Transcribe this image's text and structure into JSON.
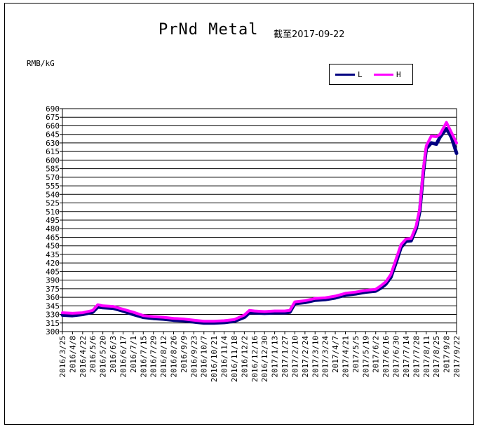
{
  "title": "PrNd Metal",
  "subtitle": "截至2017-09-22",
  "unit": "RMB/kG",
  "colors": {
    "L": "#000080",
    "H": "#ff00ff",
    "grid": "#000000",
    "background": "#ffffff"
  },
  "chart_data": {
    "type": "line",
    "title": "PrNd Metal",
    "ylabel": "RMB/kG",
    "ylim": [
      300,
      690
    ],
    "ystep": 15,
    "grid": true,
    "legend_position": "top-right",
    "yticks": [
      "300",
      "315",
      "330",
      "345",
      "360",
      "375",
      "390",
      "405",
      "420",
      "435",
      "450",
      "465",
      "480",
      "495",
      "510",
      "525",
      "540",
      "555",
      "570",
      "585",
      "600",
      "615",
      "630",
      "645",
      "660",
      "675",
      "690"
    ],
    "xticks": [
      "2016/3/25",
      "2016/4/8",
      "2016/4/22",
      "2016/5/6",
      "2016/5/20",
      "2016/6/3",
      "2016/6/17",
      "2016/7/1",
      "2016/7/15",
      "2016/7/29",
      "2016/8/12",
      "2016/8/26",
      "2016/9/9",
      "2016/9/23",
      "2016/10/7",
      "2016/10/21",
      "2016/11/4",
      "2016/11/18",
      "2016/12/2",
      "2016/12/16",
      "2016/12/30",
      "2017/1/13",
      "2017/1/27",
      "2017/2/10",
      "2017/2/24",
      "2017/3/10",
      "2017/3/24",
      "2017/4/7",
      "2017/4/21",
      "2017/5/5",
      "2017/5/19",
      "2017/6/2",
      "2017/6/16",
      "2017/6/30",
      "2017/7/14",
      "2017/7/28",
      "2017/8/11",
      "2017/8/25",
      "2017/9/8",
      "2017/9/22"
    ],
    "series": [
      {
        "name": "L",
        "points": [
          [
            "2016/3/25",
            329
          ],
          [
            "2016/4/8",
            328
          ],
          [
            "2016/4/22",
            330
          ],
          [
            "2016/5/6",
            334
          ],
          [
            "2016/5/13",
            343
          ],
          [
            "2016/5/20",
            342
          ],
          [
            "2016/6/3",
            341
          ],
          [
            "2016/6/17",
            336
          ],
          [
            "2016/7/1",
            330
          ],
          [
            "2016/7/15",
            325
          ],
          [
            "2016/7/29",
            323
          ],
          [
            "2016/8/12",
            322
          ],
          [
            "2016/8/26",
            320
          ],
          [
            "2016/9/9",
            319
          ],
          [
            "2016/9/23",
            317
          ],
          [
            "2016/10/7",
            315
          ],
          [
            "2016/10/21",
            315
          ],
          [
            "2016/11/4",
            316
          ],
          [
            "2016/11/18",
            318
          ],
          [
            "2016/12/2",
            325
          ],
          [
            "2016/12/9",
            333
          ],
          [
            "2016/12/16",
            333
          ],
          [
            "2016/12/30",
            332
          ],
          [
            "2017/1/13",
            333
          ],
          [
            "2017/1/27",
            333
          ],
          [
            "2017/2/3",
            334
          ],
          [
            "2017/2/10",
            349
          ],
          [
            "2017/2/24",
            351
          ],
          [
            "2017/3/10",
            355
          ],
          [
            "2017/3/24",
            356
          ],
          [
            "2017/4/7",
            359
          ],
          [
            "2017/4/21",
            364
          ],
          [
            "2017/5/5",
            366
          ],
          [
            "2017/5/19",
            369
          ],
          [
            "2017/6/2",
            371
          ],
          [
            "2017/6/9",
            376
          ],
          [
            "2017/6/16",
            383
          ],
          [
            "2017/6/23",
            395
          ],
          [
            "2017/6/30",
            420
          ],
          [
            "2017/7/7",
            447
          ],
          [
            "2017/7/14",
            458
          ],
          [
            "2017/7/21",
            459
          ],
          [
            "2017/7/28",
            480
          ],
          [
            "2017/8/2",
            510
          ],
          [
            "2017/8/7",
            580
          ],
          [
            "2017/8/11",
            620
          ],
          [
            "2017/8/18",
            630
          ],
          [
            "2017/8/25",
            628
          ],
          [
            "2017/8/30",
            640
          ],
          [
            "2017/9/8",
            655
          ],
          [
            "2017/9/15",
            640
          ],
          [
            "2017/9/22",
            612
          ]
        ]
      },
      {
        "name": "H",
        "points": [
          [
            "2016/3/25",
            333
          ],
          [
            "2016/4/8",
            332
          ],
          [
            "2016/4/22",
            333
          ],
          [
            "2016/5/6",
            337
          ],
          [
            "2016/5/13",
            347
          ],
          [
            "2016/5/20",
            345
          ],
          [
            "2016/6/3",
            344
          ],
          [
            "2016/6/17",
            339
          ],
          [
            "2016/7/1",
            334
          ],
          [
            "2016/7/15",
            328
          ],
          [
            "2016/7/29",
            326
          ],
          [
            "2016/8/12",
            325
          ],
          [
            "2016/8/26",
            323
          ],
          [
            "2016/9/9",
            322
          ],
          [
            "2016/9/23",
            320
          ],
          [
            "2016/10/7",
            318
          ],
          [
            "2016/10/21",
            318
          ],
          [
            "2016/11/4",
            319
          ],
          [
            "2016/11/18",
            321
          ],
          [
            "2016/12/2",
            329
          ],
          [
            "2016/12/9",
            337
          ],
          [
            "2016/12/16",
            336
          ],
          [
            "2016/12/30",
            335
          ],
          [
            "2017/1/13",
            336
          ],
          [
            "2017/1/27",
            336
          ],
          [
            "2017/2/3",
            337
          ],
          [
            "2017/2/10",
            352
          ],
          [
            "2017/2/24",
            354
          ],
          [
            "2017/3/10",
            358
          ],
          [
            "2017/3/24",
            359
          ],
          [
            "2017/4/7",
            362
          ],
          [
            "2017/4/21",
            367
          ],
          [
            "2017/5/5",
            369
          ],
          [
            "2017/5/19",
            372
          ],
          [
            "2017/6/2",
            374
          ],
          [
            "2017/6/9",
            380
          ],
          [
            "2017/6/16",
            387
          ],
          [
            "2017/6/23",
            400
          ],
          [
            "2017/6/30",
            426
          ],
          [
            "2017/7/7",
            452
          ],
          [
            "2017/7/14",
            462
          ],
          [
            "2017/7/21",
            463
          ],
          [
            "2017/7/28",
            485
          ],
          [
            "2017/8/2",
            515
          ],
          [
            "2017/8/7",
            585
          ],
          [
            "2017/8/11",
            625
          ],
          [
            "2017/8/18",
            642
          ],
          [
            "2017/8/25",
            641
          ],
          [
            "2017/8/30",
            645
          ],
          [
            "2017/9/8",
            666
          ],
          [
            "2017/9/15",
            648
          ],
          [
            "2017/9/22",
            630
          ]
        ]
      }
    ]
  }
}
